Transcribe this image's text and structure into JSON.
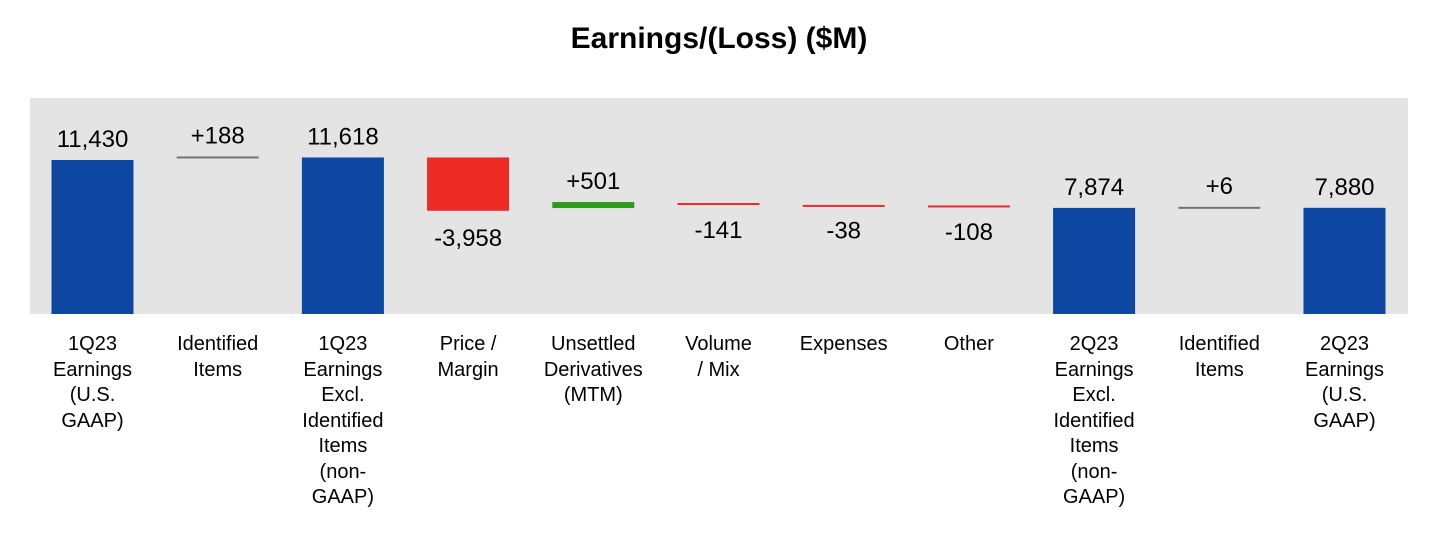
{
  "chart_data": {
    "type": "bar",
    "title": "Earnings/(Loss) ($M)",
    "xlabel": "",
    "ylabel": "",
    "grid": false,
    "colors": {
      "total": "#0D47A1",
      "negative": "#EE2A24",
      "positive": "#2E9C1A",
      "neutral": "#737373",
      "plot_bg": "#E4E4E4"
    },
    "categories": [
      "1Q23\nEarnings\n(U.S.\nGAAP)",
      "Identified\nItems",
      "1Q23\nEarnings\nExcl.\nIdentified\nItems\n(non-\nGAAP)",
      "Price /\nMargin",
      "Unsettled\nDerivatives\n(MTM)",
      "Volume\n/ Mix",
      "Expenses",
      "Other",
      "2Q23\nEarnings\nExcl.\nIdentified\nItems\n(non-\nGAAP)",
      "Identified\nItems",
      "2Q23\nEarnings\n(U.S.\nGAAP)"
    ],
    "values": [
      11430,
      188,
      11618,
      -3958,
      501,
      -141,
      -38,
      -108,
      7874,
      6,
      7880
    ],
    "data_labels": [
      "11,430",
      "+188",
      "11,618",
      "-3,958",
      "+501",
      "-141",
      "-38",
      "-108",
      "7,874",
      "+6",
      "7,880"
    ],
    "kinds": [
      "total",
      "neutral",
      "total",
      "negative",
      "positive",
      "negative",
      "negative",
      "negative",
      "total",
      "neutral",
      "total"
    ]
  }
}
